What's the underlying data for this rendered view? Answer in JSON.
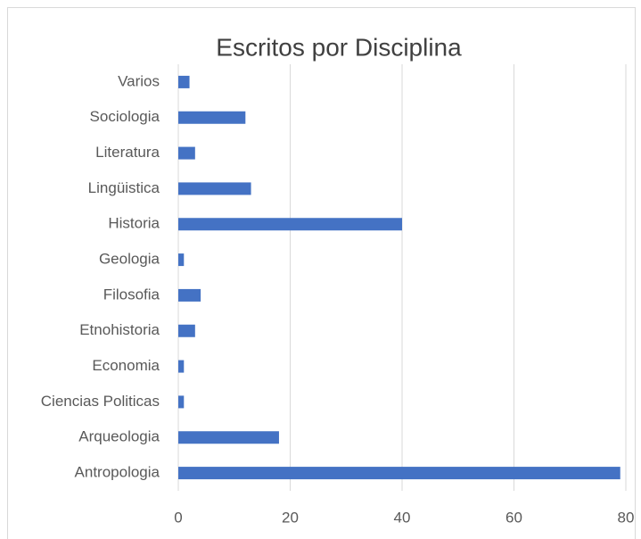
{
  "chart_data": {
    "type": "bar",
    "orientation": "horizontal",
    "title": "Escritos por Disciplina",
    "categories": [
      "Antropologia",
      "Arqueologia",
      "Ciencias Politicas",
      "Economia",
      "Etnohistoria",
      "Filosofia",
      "Geologia",
      "Historia",
      "Lingüistica",
      "Literatura",
      "Sociologia",
      "Varios"
    ],
    "values": [
      79,
      18,
      1,
      1,
      3,
      4,
      1,
      40,
      13,
      3,
      12,
      2
    ],
    "color": "#4472c4",
    "xlim": [
      0,
      80
    ],
    "xticks": [
      0,
      20,
      40,
      60,
      80
    ],
    "grid": true
  }
}
